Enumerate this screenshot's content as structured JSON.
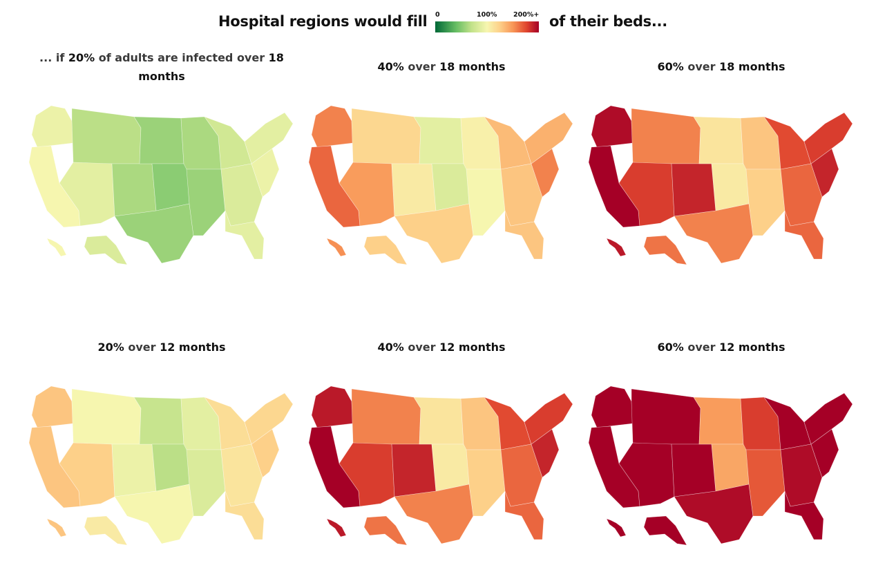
{
  "header": {
    "lead": "Hospital regions would fill",
    "trail": "of their beds..."
  },
  "legend": {
    "ticks": [
      "0",
      "100%",
      "200%+"
    ],
    "stops": [
      "#006837",
      "#66bd63",
      "#c2e28a",
      "#f7f6b0",
      "#fdd18a",
      "#f89657",
      "#e0462f",
      "#a50026"
    ],
    "domain": [
      0,
      200
    ]
  },
  "chart_data": [
    {
      "type": "heatmap",
      "title_parts": [
        [
          "... if ",
          "soft"
        ],
        [
          "20%",
          "strong"
        ],
        [
          " of adults are infected over ",
          "soft"
        ],
        [
          "18",
          "strong"
        ],
        [
          " months",
          "strong"
        ]
      ],
      "scenario": {
        "infected_pct": 20,
        "months": 18
      },
      "regions": {
        "west_coast": 85,
        "pacific_nw": 80,
        "mountain_north": 55,
        "mountain_south": 75,
        "colorado": 50,
        "plains_north": 45,
        "plains_south": 40,
        "texas": 45,
        "midwest": 50,
        "great_lakes": 65,
        "south_central": 45,
        "southeast": 70,
        "mid_atlantic": 80,
        "northeast": 75,
        "florida": 75,
        "alaska": 70,
        "hawaii": 85
      }
    },
    {
      "type": "heatmap",
      "title_parts": [
        [
          "40%",
          "strong"
        ],
        [
          " over ",
          "soft"
        ],
        [
          "18",
          "strong"
        ],
        [
          " months",
          "strong"
        ]
      ],
      "scenario": {
        "infected_pct": 40,
        "months": 18
      },
      "regions": {
        "west_coast": 160,
        "pacific_nw": 150,
        "mountain_north": 110,
        "mountain_south": 140,
        "colorado": 95,
        "plains_north": 75,
        "plains_south": 70,
        "texas": 115,
        "midwest": 90,
        "great_lakes": 125,
        "south_central": 85,
        "southeast": 120,
        "mid_atlantic": 150,
        "northeast": 130,
        "florida": 120,
        "alaska": 115,
        "hawaii": 145
      }
    },
    {
      "type": "heatmap",
      "title_parts": [
        [
          "60%",
          "strong"
        ],
        [
          " over ",
          "soft"
        ],
        [
          "18",
          "strong"
        ],
        [
          " months",
          "strong"
        ]
      ],
      "scenario": {
        "infected_pct": 60,
        "months": 18
      },
      "regions": {
        "west_coast": 200,
        "pacific_nw": 195,
        "mountain_north": 150,
        "mountain_south": 175,
        "colorado": 185,
        "plains_north": 100,
        "plains_south": 95,
        "texas": 150,
        "midwest": 120,
        "great_lakes": 170,
        "south_central": 115,
        "southeast": 160,
        "mid_atlantic": 185,
        "northeast": 175,
        "florida": 160,
        "alaska": 155,
        "hawaii": 190
      }
    },
    {
      "type": "heatmap",
      "title_parts": [
        [
          "20%",
          "strong"
        ],
        [
          " over ",
          "soft"
        ],
        [
          "12",
          "strong"
        ],
        [
          " months",
          "strong"
        ]
      ],
      "scenario": {
        "infected_pct": 20,
        "months": 12
      },
      "regions": {
        "west_coast": 120,
        "pacific_nw": 120,
        "mountain_north": 85,
        "mountain_south": 115,
        "colorado": 80,
        "plains_north": 60,
        "plains_south": 55,
        "texas": 85,
        "midwest": 75,
        "great_lakes": 105,
        "south_central": 70,
        "southeast": 100,
        "mid_atlantic": 115,
        "northeast": 110,
        "florida": 105,
        "alaska": 95,
        "hawaii": 120
      }
    },
    {
      "type": "heatmap",
      "title_parts": [
        [
          "40%",
          "strong"
        ],
        [
          " over ",
          "soft"
        ],
        [
          "12",
          "strong"
        ],
        [
          " months",
          "strong"
        ]
      ],
      "scenario": {
        "infected_pct": 40,
        "months": 12
      },
      "regions": {
        "west_coast": 200,
        "pacific_nw": 190,
        "mountain_north": 150,
        "mountain_south": 175,
        "colorado": 185,
        "plains_north": 100,
        "plains_south": 95,
        "texas": 150,
        "midwest": 120,
        "great_lakes": 170,
        "south_central": 115,
        "southeast": 160,
        "mid_atlantic": 185,
        "northeast": 175,
        "florida": 160,
        "alaska": 155,
        "hawaii": 190
      }
    },
    {
      "type": "heatmap",
      "title_parts": [
        [
          "60%",
          "strong"
        ],
        [
          " over ",
          "soft"
        ],
        [
          "12",
          "strong"
        ],
        [
          " months",
          "strong"
        ]
      ],
      "scenario": {
        "infected_pct": 60,
        "months": 12
      },
      "regions": {
        "west_coast": 200,
        "pacific_nw": 200,
        "mountain_north": 200,
        "mountain_south": 200,
        "colorado": 200,
        "plains_north": 140,
        "plains_south": 135,
        "texas": 195,
        "midwest": 175,
        "great_lakes": 200,
        "south_central": 165,
        "southeast": 195,
        "mid_atlantic": 200,
        "northeast": 200,
        "florida": 200,
        "alaska": 200,
        "hawaii": 200
      }
    }
  ]
}
